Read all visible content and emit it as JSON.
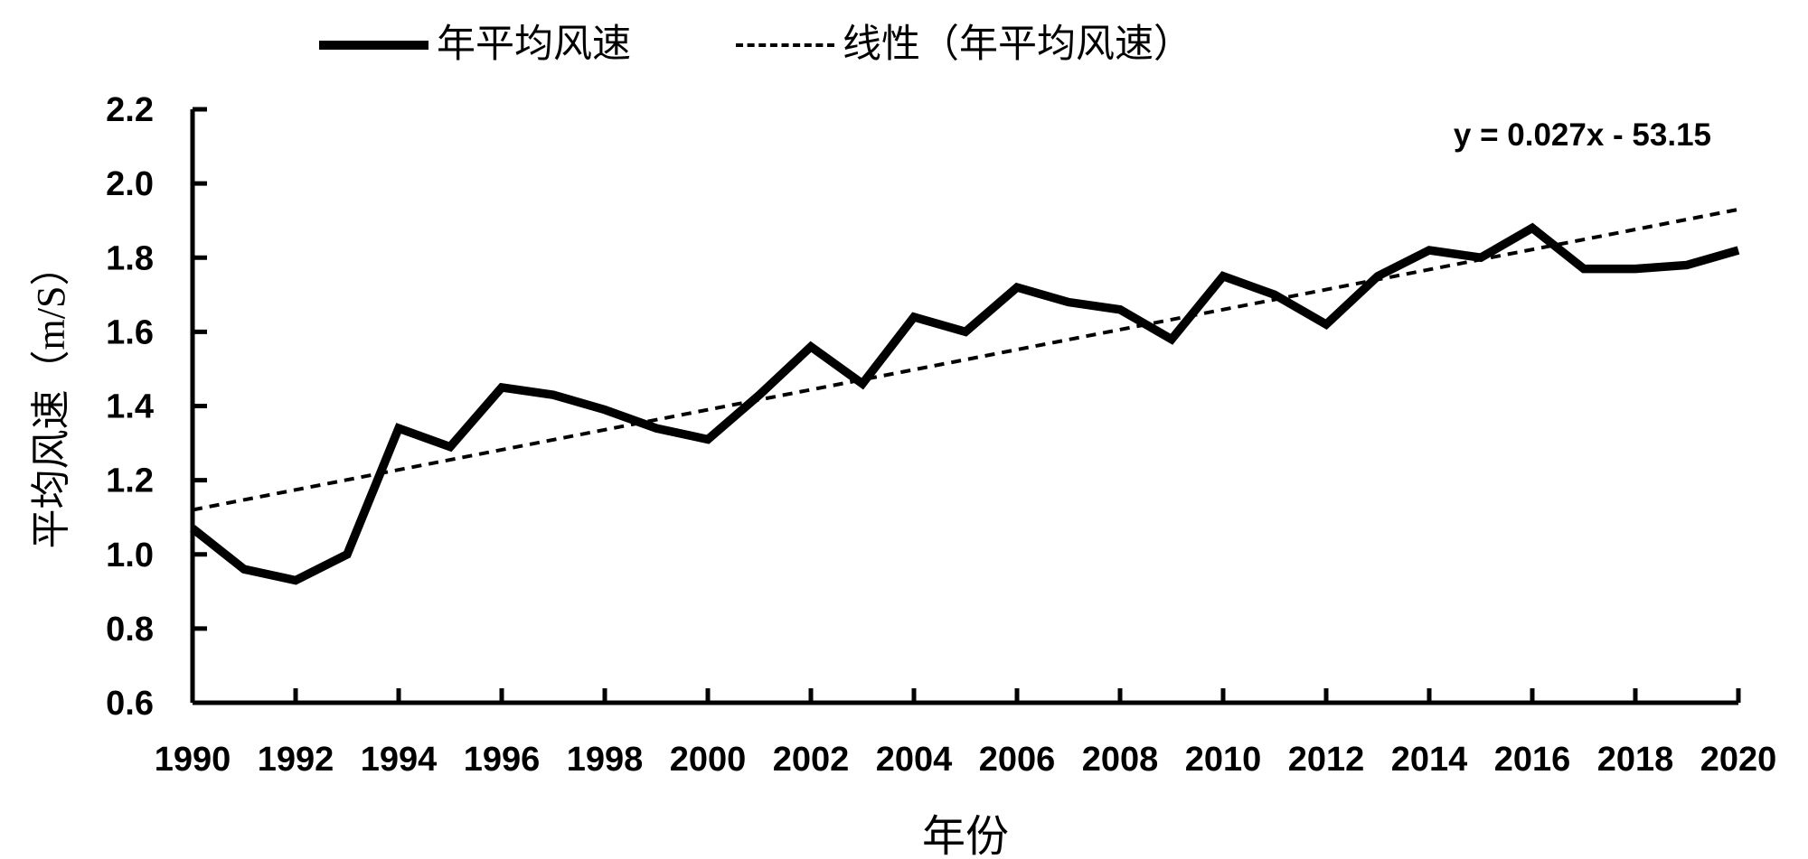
{
  "legend": {
    "series_label": "年平均风速",
    "trend_label": "线性（年平均风速）"
  },
  "annotation": {
    "equation": "y = 0.027x - 53.15"
  },
  "axes": {
    "y_title": "平均风速（m/S）",
    "x_title": "年份"
  },
  "chart_data": {
    "type": "line",
    "title": "",
    "xlabel": "年份",
    "ylabel": "平均风速（m/S）",
    "x": [
      1990,
      1991,
      1992,
      1993,
      1994,
      1995,
      1996,
      1997,
      1998,
      1999,
      2000,
      2001,
      2002,
      2003,
      2004,
      2005,
      2006,
      2007,
      2008,
      2009,
      2010,
      2011,
      2012,
      2013,
      2014,
      2015,
      2016,
      2017,
      2018,
      2019,
      2020
    ],
    "series": [
      {
        "name": "年平均风速",
        "values": [
          1.07,
          0.96,
          0.93,
          1.0,
          1.34,
          1.29,
          1.45,
          1.43,
          1.39,
          1.34,
          1.31,
          1.43,
          1.56,
          1.46,
          1.64,
          1.6,
          1.72,
          1.68,
          1.66,
          1.58,
          1.75,
          1.7,
          1.62,
          1.75,
          1.82,
          1.8,
          1.88,
          1.77,
          1.77,
          1.78,
          1.82
        ]
      }
    ],
    "trendline": {
      "name": "线性（年平均风速）",
      "equation": "y = 0.027x - 53.15",
      "slope_per_year": 0.027,
      "value_at_1990": 1.12,
      "value_at_2020": 1.93,
      "style": "dashed"
    },
    "xlim": [
      1990,
      2020
    ],
    "ylim": [
      0.6,
      2.2
    ],
    "xtick_step": 2,
    "ytick_step": 0.2,
    "grid": false,
    "legend_position": "top",
    "colors": {
      "line": "#000000",
      "trend": "#000000",
      "text": "#000000",
      "background": "#ffffff"
    }
  }
}
